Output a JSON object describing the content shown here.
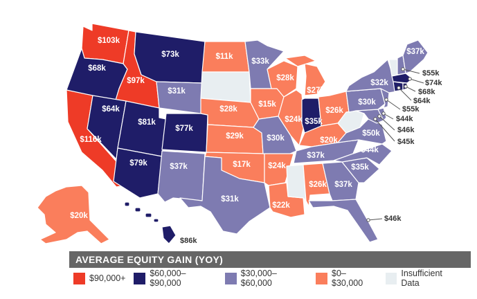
{
  "colors": {
    "tier1": "#ee3b27",
    "tier2": "#1f1d68",
    "tier3": "#7e7bb1",
    "tier4": "#fa7e5c",
    "none": "#e8eef1"
  },
  "legend": {
    "title": "AVERAGE EQUITY GAIN (YOY)",
    "items": [
      {
        "label": "$90,000+",
        "color": "#ee3b27"
      },
      {
        "label": "$60,000–$90,000",
        "color": "#1f1d68"
      },
      {
        "label": "$30,000–$60,000",
        "color": "#7e7bb1"
      },
      {
        "label": "$0–$30,000",
        "color": "#fa7e5c"
      },
      {
        "label": "Insufficient Data",
        "color": "#e8eef1"
      }
    ]
  },
  "states": {
    "WA": "$103k",
    "OR": "$68k",
    "CA": "$116k",
    "ID": "$97k",
    "NV": "$64k",
    "MT": "$73k",
    "WY": "$31k",
    "UT": "$81k",
    "CO": "$77k",
    "AZ": "$79k",
    "NM": "$37k",
    "ND": "$11k",
    "SD": "",
    "NE": "$28k",
    "KS": "$29k",
    "OK": "$17k",
    "TX": "$31k",
    "MN": "$33k",
    "IA": "$15k",
    "MO": "$30k",
    "AR": "$24k",
    "LA": "$22k",
    "WI": "$28k",
    "IL": "$24k",
    "MS": "",
    "MI": "$27k",
    "IN": "$35k",
    "OH": "$26k",
    "KY": "$20k",
    "TN": "$37k",
    "AL": "$26k",
    "GA": "$37k",
    "FL": "$46k",
    "SC": "$35k",
    "NC": "$44k",
    "VA": "$50k",
    "WV": "",
    "PA": "$30k",
    "NY": "$32k",
    "ME": "$37k",
    "VT": "",
    "NH": "$55k",
    "MA": "$74k",
    "RI": "$68k",
    "CT": "$64k",
    "NJ": "$55k",
    "DE": "$44k",
    "MD": "$46k",
    "DC": "$45k",
    "AK": "$20k",
    "HI": "$86k"
  }
}
